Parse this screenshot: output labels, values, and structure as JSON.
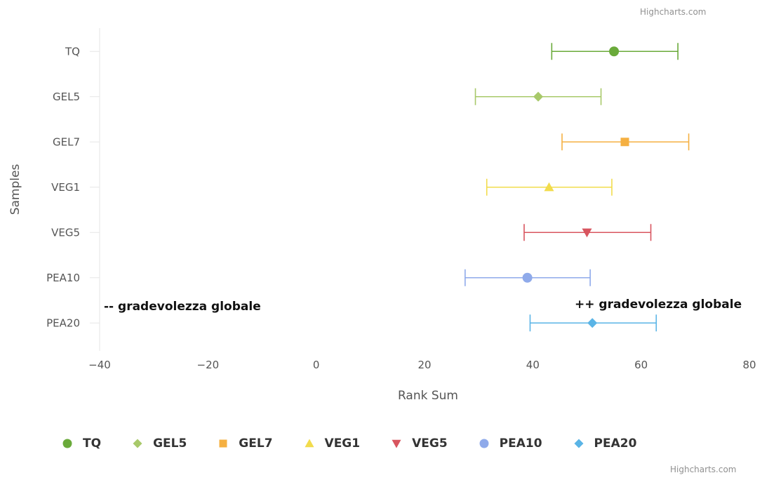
{
  "credits": {
    "top": "Highcharts.com",
    "bottom": "Highcharts.com"
  },
  "annotations": {
    "left": "-- gradevolezza globale",
    "right": "++ gradevolezza globale"
  },
  "chart_data": {
    "type": "errorbar-dot",
    "xlabel": "Rank Sum",
    "ylabel": "Samples",
    "xlim": [
      -40,
      80
    ],
    "xticks": [
      -40,
      -20,
      0,
      20,
      40,
      60,
      80
    ],
    "grid": false,
    "legend_position": "bottom",
    "categories": [
      "TQ",
      "GEL5",
      "GEL7",
      "VEG1",
      "VEG5",
      "PEA10",
      "PEA20"
    ],
    "series": [
      {
        "name": "TQ",
        "value": 55.0,
        "low": 43.5,
        "high": 66.8,
        "color": "#6aaa3a",
        "marker": "circle"
      },
      {
        "name": "GEL5",
        "value": 41.0,
        "low": 29.4,
        "high": 52.6,
        "color": "#a8c96a",
        "marker": "diamond"
      },
      {
        "name": "GEL7",
        "value": 57.0,
        "low": 45.4,
        "high": 68.8,
        "color": "#f5b042",
        "marker": "square"
      },
      {
        "name": "VEG1",
        "value": 43.0,
        "low": 31.5,
        "high": 54.6,
        "color": "#f2dc4c",
        "marker": "triangle"
      },
      {
        "name": "VEG5",
        "value": 50.0,
        "low": 38.4,
        "high": 61.8,
        "color": "#d8555f",
        "marker": "triangle-down"
      },
      {
        "name": "PEA10",
        "value": 39.0,
        "low": 27.5,
        "high": 50.6,
        "color": "#8faaea",
        "marker": "circle"
      },
      {
        "name": "PEA20",
        "value": 51.0,
        "low": 39.5,
        "high": 62.8,
        "color": "#5ab4e6",
        "marker": "diamond"
      }
    ]
  }
}
